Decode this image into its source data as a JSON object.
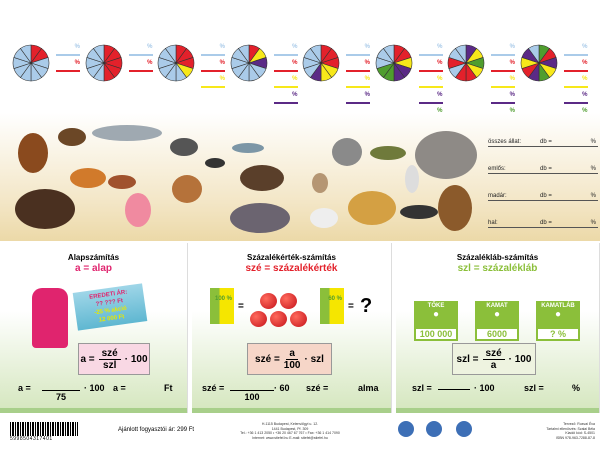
{
  "colors": {
    "blue": "#aacbe9",
    "red": "#e3212b",
    "yellow": "#f7e81a",
    "purple": "#5b2a86",
    "green": "#4f9d2e",
    "magenta": "#e0246e",
    "green_text": "#8bbf3a"
  },
  "chart_data": {
    "type": "pie",
    "pies": [
      {
        "slices": [
          "red",
          "red",
          "blue",
          "blue",
          "blue",
          "blue",
          "blue",
          "blue",
          "blue",
          "blue"
        ],
        "lines": [
          "blue",
          "red"
        ]
      },
      {
        "slices": [
          "red",
          "red",
          "red",
          "red",
          "red",
          "blue",
          "blue",
          "blue",
          "blue",
          "blue"
        ],
        "lines": [
          "blue",
          "red"
        ]
      },
      {
        "slices": [
          "red",
          "red",
          "red",
          "yellow",
          "blue",
          "blue",
          "blue",
          "blue",
          "blue",
          "blue"
        ],
        "lines": [
          "blue",
          "red",
          "yellow"
        ]
      },
      {
        "slices": [
          "red",
          "yellow",
          "purple",
          "blue",
          "blue",
          "blue",
          "blue",
          "blue",
          "blue",
          "blue"
        ],
        "lines": [
          "blue",
          "red",
          "yellow",
          "purple"
        ]
      },
      {
        "slices": [
          "red",
          "red",
          "red",
          "yellow",
          "yellow",
          "purple",
          "blue",
          "blue",
          "blue",
          "blue"
        ],
        "lines": [
          "blue",
          "red",
          "yellow",
          "purple"
        ]
      },
      {
        "slices": [
          "red",
          "red",
          "yellow",
          "purple",
          "purple",
          "green",
          "green",
          "blue",
          "blue",
          "blue"
        ],
        "lines": [
          "blue",
          "red",
          "yellow",
          "purple",
          "green"
        ]
      },
      {
        "slices": [
          "purple",
          "yellow",
          "green",
          "yellow",
          "red",
          "red",
          "blue",
          "red",
          "blue",
          "blue"
        ],
        "lines": [
          "blue",
          "red",
          "yellow",
          "purple",
          "green"
        ]
      },
      {
        "slices": [
          "green",
          "red",
          "purple",
          "yellow",
          "green",
          "purple",
          "red",
          "yellow",
          "purple",
          "blue"
        ],
        "lines": [
          "blue",
          "red",
          "yellow",
          "purple",
          "green"
        ]
      }
    ],
    "line_label": "%"
  },
  "stats": [
    {
      "label": "összes állat:",
      "db": "db =",
      "pct": "%"
    },
    {
      "label": "emlős:",
      "db": "db =",
      "pct": "%"
    },
    {
      "label": "madár:",
      "db": "db =",
      "pct": "%"
    },
    {
      "label": "hal:",
      "db": "db =",
      "pct": "%"
    }
  ],
  "panels": {
    "p1": {
      "title": "Alapszámítás",
      "sub": "a = alap",
      "tag": [
        "EREDETI ÁR:",
        "?? ??? Ft",
        "-25 % akció",
        "12 000 Ft"
      ],
      "f_left": "a =",
      "f_num": "szé",
      "f_den": "szl",
      "f_right": "· 100",
      "c1": "a =",
      "c_den": "75",
      "c2": "· 100",
      "c3": "a =",
      "c4": "Ft"
    },
    "p2": {
      "title": "Százalékérték-számítás",
      "sub": "szé = százalékérték",
      "box1": "100 %",
      "box2": "60 %",
      "eq": "=",
      "q": "?",
      "f_left": "szé =",
      "f_num": "a",
      "f_den": "100",
      "f_right": "· szl",
      "c1": "szé =",
      "c_den": "100",
      "c2": "· 60",
      "c3": "szé =",
      "c4": "alma"
    },
    "p3": {
      "title": "Százalékláb-számítás",
      "sub": "szl = százalékláb",
      "banks": [
        {
          "t": "TŐKE",
          "v": "100 000"
        },
        {
          "t": "KAMAT",
          "v": "6000"
        },
        {
          "t": "KAMATLÁB",
          "v": "? %"
        }
      ],
      "f_left": "szl =",
      "f_num": "szé",
      "f_den": "a",
      "f_right": "· 100",
      "c1": "szl =",
      "c2": "· 100",
      "c3": "szl =",
      "c4": "%"
    }
  },
  "footer": {
    "barcode": "5998504317401",
    "price": "Ajánlott fogyasztói ár: 299 Ft",
    "address": [
      "H-1115 Budapest, Kelenvölgyi u. 12.",
      "1441 Budapest, Pf. 309",
      "Tel.: +36 1 413 2050 • +36 20 467 67 767 • Fax: +36 1 414 7090",
      "Internet: www.stiefel.hu E-mail: stiefel@stiefel.hu"
    ],
    "credits": [
      "Tervező: Rusvai Éva",
      "Tartalmi ellenőrzés: Szalai Béla",
      "Kiadói kód: S-4501",
      "ISBN 978-963-7288-87-8"
    ]
  }
}
